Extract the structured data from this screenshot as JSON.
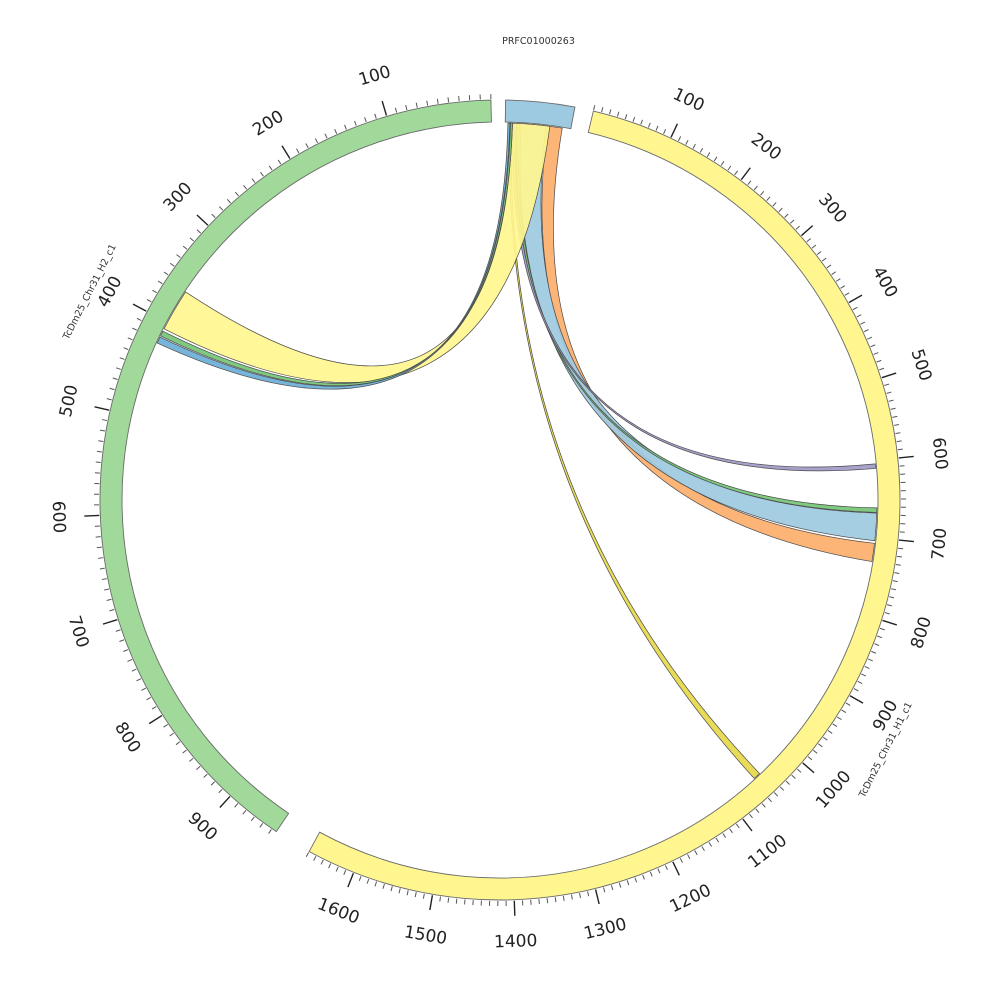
{
  "sequences": [
    {
      "id": "h1",
      "name": "TcDm25_Chr31_H1_c1",
      "length": 1660,
      "color": "#fff68f",
      "tick_labels": [
        "100",
        "200",
        "300",
        "400",
        "500",
        "600",
        "700",
        "800",
        "900",
        "1000",
        "1100",
        "1200",
        "1300",
        "1400",
        "1500",
        "1600"
      ]
    },
    {
      "id": "h2",
      "name": "TcDm25_Chr31_H2_c1",
      "length": 955,
      "color": "#a1d99b",
      "tick_labels": [
        "100",
        "200",
        "300",
        "400",
        "500",
        "600",
        "700",
        "800",
        "900"
      ]
    },
    {
      "id": "prfc",
      "name": "PRFC01000263",
      "length": 75,
      "color": "#9ecae1",
      "tick_labels": []
    }
  ],
  "links": [
    {
      "source": "prfc",
      "target": "h1",
      "color": "#fdae6b"
    },
    {
      "source": "prfc",
      "target": "h1",
      "color": "#9ecae1"
    },
    {
      "source": "prfc",
      "target": "h1",
      "color": "#74c476"
    },
    {
      "source": "prfc",
      "target": "h1",
      "color": "#9e9ac8"
    },
    {
      "source": "prfc",
      "target": "h1",
      "color": "#e6d84a"
    },
    {
      "source": "prfc",
      "target": "h2",
      "color": "#fff68f"
    },
    {
      "source": "prfc",
      "target": "h2",
      "color": "#74c476"
    },
    {
      "source": "prfc",
      "target": "h2",
      "color": "#6baed6"
    }
  ]
}
